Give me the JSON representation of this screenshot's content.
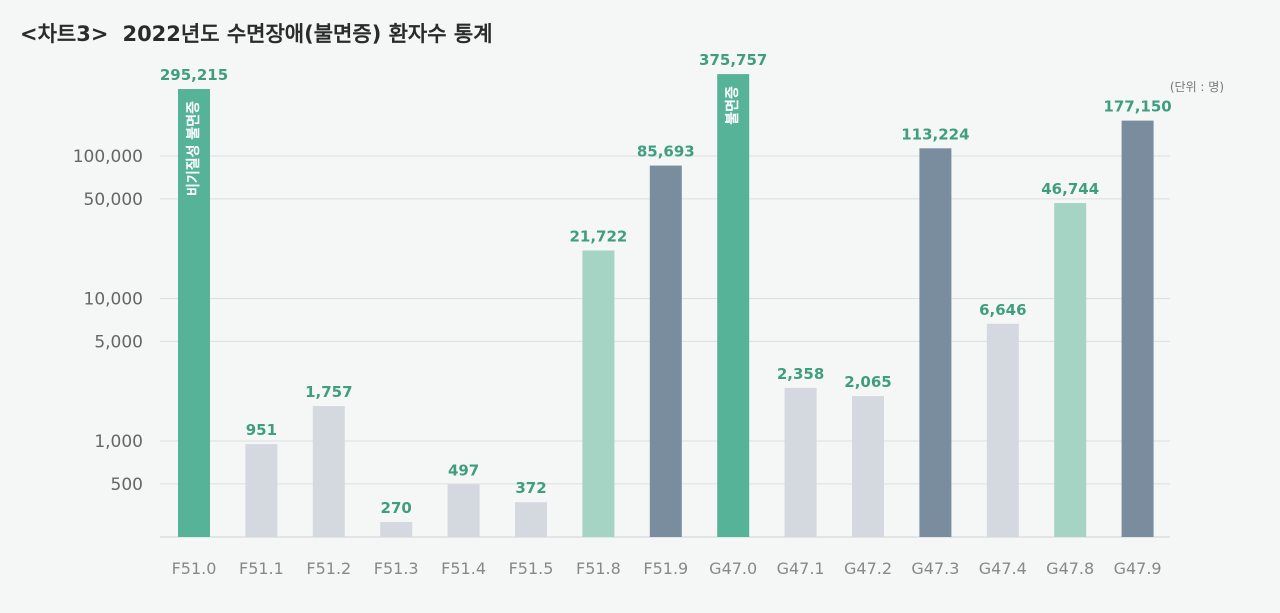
{
  "header": {
    "prefix": "<차트3>",
    "title": "2022년도 수면장애(불면증) 환자수 통계",
    "unit": "(단위 : 명)"
  },
  "colors": {
    "primary": "#57b398",
    "light": "#a5d4c5",
    "gray": "#d3d9df",
    "slate": "#7a8d9f",
    "label": "#3f9e80",
    "grid": "#dcdfe0"
  },
  "chart_data": {
    "type": "bar",
    "title": "2022년도 수면장애(불면증) 환자수 통계",
    "xlabel": "",
    "ylabel": "",
    "yscale": "log",
    "ylim": [
      250,
      400000
    ],
    "yticks": [
      500,
      1000,
      5000,
      10000,
      50000,
      100000
    ],
    "ytick_labels": [
      "500",
      "1,000",
      "5,000",
      "10,000",
      "50,000",
      "100,000"
    ],
    "grid": true,
    "categories": [
      "F51.0",
      "F51.1",
      "F51.2",
      "F51.3",
      "F51.4",
      "F51.5",
      "F51.8",
      "F51.9",
      "G47.0",
      "G47.1",
      "G47.2",
      "G47.3",
      "G47.4",
      "G47.8",
      "G47.9"
    ],
    "values": [
      295215,
      951,
      1757,
      270,
      497,
      372,
      21722,
      85693,
      375757,
      2358,
      2065,
      113224,
      6646,
      46744,
      177150
    ],
    "value_labels": [
      "295,215",
      "951",
      "1,757",
      "270",
      "497",
      "372",
      "21,722",
      "85,693",
      "375,757",
      "2,358",
      "2,065",
      "113,224",
      "6,646",
      "46,744",
      "177,150"
    ],
    "bar_colors": [
      "primary",
      "gray",
      "gray",
      "gray",
      "gray",
      "gray",
      "light",
      "slate",
      "primary",
      "gray",
      "gray",
      "slate",
      "gray",
      "light",
      "slate"
    ],
    "annotations": [
      {
        "category": "F51.0",
        "text": "비기질성 불면증"
      },
      {
        "category": "G47.0",
        "text": "불면증"
      }
    ]
  }
}
